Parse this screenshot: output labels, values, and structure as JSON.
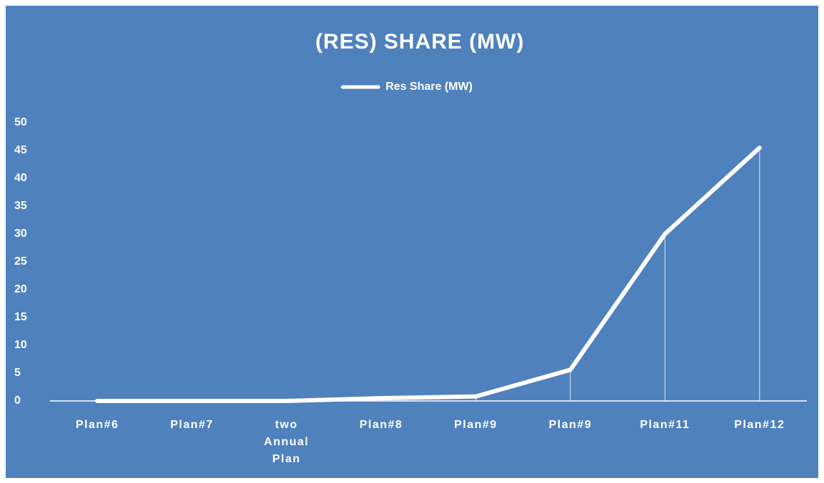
{
  "chart_data": {
    "type": "line",
    "title": "(RES) SHARE (MW)",
    "categories": [
      "Plan#6",
      "Plan#7",
      "two Annual Plan",
      "Plan#8",
      "Plan#9",
      "Plan#9",
      "Plan#11",
      "Plan#12"
    ],
    "series": [
      {
        "name": "Res Share (MW)",
        "color": "#ffffff",
        "values": [
          0,
          0,
          0,
          0.5,
          0.8,
          5.6,
          30,
          45.5
        ]
      }
    ],
    "ylim": [
      0,
      50
    ],
    "yticks": [
      0,
      5,
      10,
      15,
      20,
      25,
      30,
      35,
      40,
      45,
      50
    ],
    "drop_lines": true,
    "legend": "top",
    "background": "#4f81bd"
  }
}
